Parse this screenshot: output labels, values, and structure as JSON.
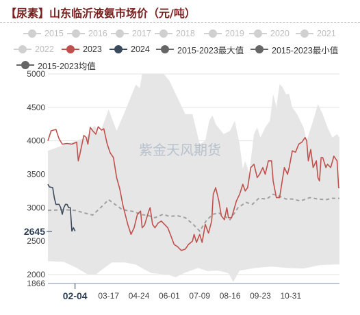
{
  "title": "【尿素】山东临沂液氨市场价（元/吨）",
  "watermark": "紫金天风期货",
  "colors": {
    "series_2023": "#c0504d",
    "series_2024": "#3a4a5c",
    "band": "#e6e6e6",
    "mean": "#a0a0a0",
    "legend_inactive": "#d0d0d0",
    "legend_minmax": "#666666"
  },
  "legend": [
    {
      "label": "2015",
      "active": false
    },
    {
      "label": "2016",
      "active": false
    },
    {
      "label": "2017",
      "active": false
    },
    {
      "label": "2018",
      "active": false
    },
    {
      "label": "2019",
      "active": false
    },
    {
      "label": "2020",
      "active": false
    },
    {
      "label": "2021",
      "active": false
    },
    {
      "label": "2022",
      "active": false
    },
    {
      "label": "2023",
      "active": true,
      "color": "#c0504d"
    },
    {
      "label": "2024",
      "active": true,
      "color": "#3a4a5c"
    },
    {
      "label": "2015-2023最大值",
      "active": true,
      "color": "#666666"
    },
    {
      "label": "2015-2023最小值",
      "active": true,
      "color": "#666666"
    },
    {
      "label": "2015-2023均值",
      "active": true,
      "color": "#666666"
    }
  ],
  "chart_data": {
    "type": "line",
    "title": "【尿素】山东临沂液氨市场价（元/吨）",
    "xlabel": "",
    "ylabel": "",
    "ylim": [
      1866,
      5000
    ],
    "yticks": [
      5000,
      4500,
      4000,
      3500,
      3000,
      2500,
      2000,
      1866
    ],
    "xticks": [
      "02-04",
      "03-17",
      "04-24",
      "06-01",
      "07-09",
      "08-16",
      "09-23",
      "10-31"
    ],
    "x_domain_days": [
      0,
      365
    ],
    "x_tick_days": [
      34,
      76,
      114,
      152,
      190,
      228,
      266,
      304
    ],
    "highlight": {
      "x_label": "02-04",
      "y_value": 2645
    },
    "legend_position": "top",
    "grid": {
      "horizontal": true,
      "vertical": false
    },
    "series": [
      {
        "name": "2023",
        "style": "line",
        "points": [
          [
            0,
            4000
          ],
          [
            4,
            4150
          ],
          [
            10,
            4170
          ],
          [
            14,
            4030
          ],
          [
            18,
            3950
          ],
          [
            24,
            3960
          ],
          [
            30,
            3950
          ],
          [
            36,
            3980
          ],
          [
            38,
            3700
          ],
          [
            40,
            3800
          ],
          [
            43,
            3970
          ],
          [
            45,
            4080
          ],
          [
            48,
            4050
          ],
          [
            50,
            3950
          ],
          [
            53,
            4200
          ],
          [
            56,
            4150
          ],
          [
            60,
            4100
          ],
          [
            63,
            4210
          ],
          [
            67,
            4160
          ],
          [
            70,
            4180
          ],
          [
            74,
            3960
          ],
          [
            78,
            3820
          ],
          [
            82,
            3750
          ],
          [
            86,
            3450
          ],
          [
            90,
            3280
          ],
          [
            94,
            3030
          ],
          [
            100,
            2750
          ],
          [
            104,
            2600
          ],
          [
            108,
            2700
          ],
          [
            112,
            2900
          ],
          [
            116,
            2950
          ],
          [
            118,
            2700
          ],
          [
            121,
            2740
          ],
          [
            126,
            2940
          ],
          [
            128,
            3000
          ],
          [
            131,
            2750
          ],
          [
            134,
            2700
          ],
          [
            138,
            2770
          ],
          [
            142,
            2800
          ],
          [
            146,
            2750
          ],
          [
            150,
            2700
          ],
          [
            154,
            2580
          ],
          [
            158,
            2450
          ],
          [
            162,
            2420
          ],
          [
            167,
            2360
          ],
          [
            172,
            2380
          ],
          [
            176,
            2450
          ],
          [
            181,
            2500
          ],
          [
            183,
            2600
          ],
          [
            186,
            2480
          ],
          [
            190,
            2600
          ],
          [
            193,
            2480
          ],
          [
            197,
            2750
          ],
          [
            201,
            2620
          ],
          [
            205,
            2800
          ],
          [
            207,
            3200
          ],
          [
            210,
            3300
          ],
          [
            214,
            3100
          ],
          [
            217,
            2880
          ],
          [
            221,
            2820
          ],
          [
            224,
            3000
          ],
          [
            226,
            2850
          ],
          [
            230,
            2850
          ],
          [
            236,
            3100
          ],
          [
            240,
            3200
          ],
          [
            244,
            3350
          ],
          [
            247,
            3250
          ],
          [
            250,
            3300
          ],
          [
            254,
            3600
          ],
          [
            258,
            3650
          ],
          [
            262,
            3450
          ],
          [
            265,
            3500
          ],
          [
            269,
            3600
          ],
          [
            272,
            3500
          ],
          [
            276,
            3700
          ],
          [
            280,
            3700
          ],
          [
            282,
            3400
          ],
          [
            286,
            3150
          ],
          [
            290,
            3150
          ],
          [
            294,
            3450
          ],
          [
            296,
            3600
          ],
          [
            300,
            3500
          ],
          [
            302,
            3600
          ],
          [
            306,
            3850
          ],
          [
            310,
            3830
          ],
          [
            314,
            3950
          ],
          [
            318,
            3980
          ],
          [
            322,
            4050
          ],
          [
            324,
            4000
          ],
          [
            326,
            3700
          ],
          [
            329,
            3870
          ],
          [
            332,
            3600
          ],
          [
            336,
            3700
          ],
          [
            338,
            3450
          ],
          [
            340,
            3400
          ],
          [
            342,
            3750
          ],
          [
            344,
            3750
          ],
          [
            348,
            3600
          ],
          [
            350,
            3650
          ],
          [
            354,
            3600
          ],
          [
            358,
            3770
          ],
          [
            362,
            3700
          ],
          [
            364,
            3300
          ],
          [
            365,
            3300
          ]
        ]
      },
      {
        "name": "2024",
        "style": "line",
        "points": [
          [
            0,
            3350
          ],
          [
            2,
            3310
          ],
          [
            6,
            3300
          ],
          [
            8,
            3150
          ],
          [
            10,
            3050
          ],
          [
            14,
            3050
          ],
          [
            16,
            3000
          ],
          [
            18,
            2900
          ],
          [
            20,
            3000
          ],
          [
            22,
            3050
          ],
          [
            24,
            3050
          ],
          [
            26,
            3000
          ],
          [
            28,
            3000
          ],
          [
            30,
            2650
          ],
          [
            32,
            2700
          ],
          [
            34,
            2650
          ]
        ]
      },
      {
        "name": "2015-2023最大值",
        "style": "band_upper",
        "points": [
          [
            0,
            3850
          ],
          [
            25,
            3960
          ],
          [
            48,
            4050
          ],
          [
            58,
            4230
          ],
          [
            65,
            4120
          ],
          [
            70,
            4270
          ],
          [
            76,
            4470
          ],
          [
            86,
            4150
          ],
          [
            95,
            4400
          ],
          [
            110,
            4840
          ],
          [
            115,
            4790
          ],
          [
            118,
            5000
          ],
          [
            145,
            5000
          ],
          [
            152,
            4900
          ],
          [
            162,
            4650
          ],
          [
            172,
            4400
          ],
          [
            181,
            4400
          ],
          [
            190,
            3950
          ],
          [
            197,
            4000
          ],
          [
            202,
            4300
          ],
          [
            206,
            4380
          ],
          [
            210,
            4250
          ],
          [
            220,
            4100
          ],
          [
            228,
            4150
          ],
          [
            234,
            4300
          ],
          [
            240,
            3950
          ],
          [
            244,
            3580
          ],
          [
            247,
            3700
          ],
          [
            252,
            3520
          ],
          [
            258,
            4100
          ],
          [
            262,
            4200
          ],
          [
            266,
            4050
          ],
          [
            272,
            4200
          ],
          [
            278,
            4300
          ],
          [
            282,
            4700
          ],
          [
            286,
            4500
          ],
          [
            290,
            4850
          ],
          [
            294,
            4800
          ],
          [
            298,
            4700
          ],
          [
            302,
            4700
          ],
          [
            306,
            4500
          ],
          [
            312,
            4400
          ],
          [
            320,
            4200
          ],
          [
            324,
            4000
          ],
          [
            332,
            4300
          ],
          [
            338,
            4550
          ],
          [
            344,
            4400
          ],
          [
            350,
            4200
          ],
          [
            356,
            4050
          ],
          [
            362,
            4100
          ],
          [
            365,
            4050
          ]
        ]
      },
      {
        "name": "2015-2023最小值",
        "style": "band_lower",
        "points": [
          [
            0,
            2200
          ],
          [
            20,
            2190
          ],
          [
            36,
            2100
          ],
          [
            50,
            2000
          ],
          [
            60,
            2000
          ],
          [
            64,
            2040
          ],
          [
            80,
            2180
          ],
          [
            96,
            2180
          ],
          [
            110,
            2150
          ],
          [
            120,
            2080
          ],
          [
            130,
            2020
          ],
          [
            150,
            2000
          ],
          [
            160,
            1960
          ],
          [
            170,
            2020
          ],
          [
            188,
            2100
          ],
          [
            200,
            2050
          ],
          [
            212,
            2060
          ],
          [
            220,
            2040
          ],
          [
            226,
            2020
          ],
          [
            232,
            1890
          ],
          [
            240,
            2060
          ],
          [
            260,
            2100
          ],
          [
            280,
            2120
          ],
          [
            300,
            2100
          ],
          [
            320,
            2090
          ],
          [
            340,
            2140
          ],
          [
            356,
            2150
          ],
          [
            365,
            2150
          ]
        ]
      },
      {
        "name": "2015-2023均值",
        "style": "dashed",
        "points": [
          [
            0,
            2960
          ],
          [
            20,
            2970
          ],
          [
            34,
            2960
          ],
          [
            46,
            2920
          ],
          [
            56,
            2890
          ],
          [
            66,
            3000
          ],
          [
            76,
            3120
          ],
          [
            84,
            3050
          ],
          [
            92,
            2980
          ],
          [
            98,
            2960
          ],
          [
            108,
            2940
          ],
          [
            116,
            2900
          ],
          [
            126,
            2880
          ],
          [
            134,
            2850
          ],
          [
            144,
            2900
          ],
          [
            152,
            2870
          ],
          [
            162,
            2880
          ],
          [
            172,
            2850
          ],
          [
            182,
            2750
          ],
          [
            190,
            2650
          ],
          [
            198,
            2800
          ],
          [
            206,
            2900
          ],
          [
            214,
            2920
          ],
          [
            220,
            2880
          ],
          [
            228,
            2820
          ],
          [
            238,
            3000
          ],
          [
            248,
            3080
          ],
          [
            256,
            3050
          ],
          [
            264,
            3140
          ],
          [
            274,
            3130
          ],
          [
            282,
            3200
          ],
          [
            290,
            3170
          ],
          [
            298,
            3130
          ],
          [
            306,
            3130
          ],
          [
            316,
            3100
          ],
          [
            328,
            3150
          ],
          [
            338,
            3130
          ],
          [
            348,
            3120
          ],
          [
            356,
            3140
          ],
          [
            365,
            3140
          ]
        ]
      }
    ]
  }
}
